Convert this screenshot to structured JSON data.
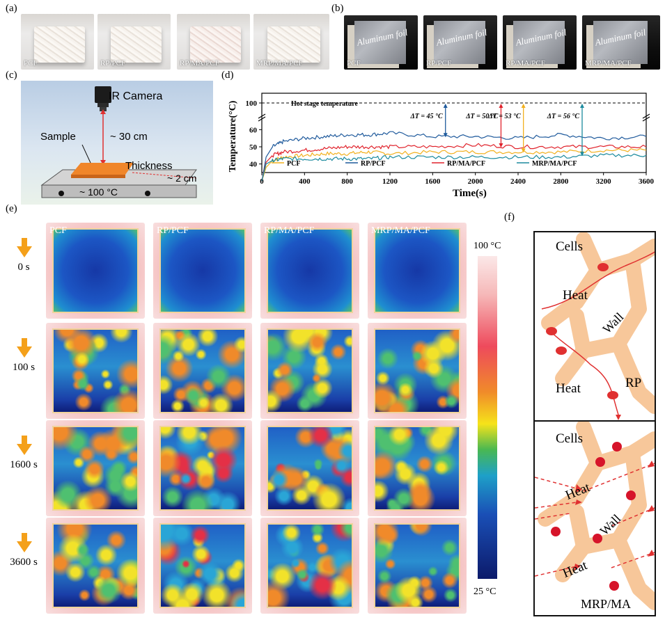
{
  "panels": {
    "a": "(a)",
    "b": "(b)",
    "c": "(c)",
    "d": "(d)",
    "e": "(e)",
    "f": "(f)"
  },
  "panel_a": {
    "captions": [
      "PCF",
      "RP/PCF",
      "RP/MA/PCF",
      "MRP/MA/PCF"
    ]
  },
  "panel_b": {
    "captions": [
      "PCF",
      "RP/PCF",
      "RP/MA/PCF",
      "MRP/MA/PCF"
    ],
    "foil_label": "Aluminum foil"
  },
  "panel_c": {
    "camera": "IR Camera",
    "sample": "Sample",
    "distance": "~ 30 cm",
    "thickness": "Thickness",
    "thickness_value": "~ 2 cm",
    "stage_temp": "~ 100 °C"
  },
  "chart_data": {
    "type": "line",
    "xlabel": "Time(s)",
    "ylabel": "Temperature(°C)",
    "xlim": [
      0,
      3600
    ],
    "xticks": [
      0,
      400,
      800,
      1200,
      1600,
      2000,
      2400,
      2800,
      3200,
      3600
    ],
    "yticks_lower": [
      40,
      50,
      60
    ],
    "ytick_upper": 100,
    "reference_line": {
      "label": "Hot stage temperature",
      "value": 100
    },
    "annotations": [
      {
        "text": "ΔT = 45 °C",
        "x": 1720,
        "series": "RP/PCF",
        "color": "#1f5a9c"
      },
      {
        "text": "ΔT = 50 °C",
        "x": 2240,
        "series": "RP/MA/PCF",
        "color": "#e0222b"
      },
      {
        "text": "ΔT = 53 °C",
        "x": 2450,
        "series": "PCF",
        "color": "#f2b01e"
      },
      {
        "text": "ΔT = 56 °C",
        "x": 3000,
        "series": "MRP/MA/PCF",
        "color": "#1b8a9e"
      }
    ],
    "series": [
      {
        "name": "PCF",
        "color": "#f2b01e",
        "x": [
          0,
          40,
          100,
          200,
          400,
          600,
          800,
          1000,
          1200,
          1600,
          2000,
          2400,
          2800,
          3200,
          3600
        ],
        "y": [
          30,
          38,
          42,
          44,
          45,
          46,
          46,
          47,
          46,
          47,
          47,
          47,
          47,
          48,
          48
        ]
      },
      {
        "name": "RP/PCF",
        "color": "#1f5a9c",
        "x": [
          0,
          40,
          100,
          200,
          400,
          600,
          800,
          1000,
          1200,
          1600,
          2000,
          2400,
          2800,
          3200,
          3600
        ],
        "y": [
          30,
          44,
          50,
          53,
          55,
          56,
          57,
          57,
          58,
          56,
          56,
          55,
          57,
          55,
          56
        ]
      },
      {
        "name": "RP/MA/PCF",
        "color": "#e0222b",
        "x": [
          0,
          40,
          100,
          200,
          400,
          600,
          800,
          1000,
          1200,
          1600,
          2000,
          2400,
          2800,
          3200,
          3600
        ],
        "y": [
          30,
          41,
          45,
          47,
          48,
          49,
          50,
          50,
          50,
          50,
          51,
          50,
          50,
          50,
          50
        ]
      },
      {
        "name": "MRP/MA/PCF",
        "color": "#1b8a9e",
        "x": [
          0,
          40,
          100,
          200,
          400,
          600,
          800,
          1000,
          1200,
          1600,
          2000,
          2400,
          2800,
          3200,
          3600
        ],
        "y": [
          30,
          40,
          42,
          43,
          43,
          43,
          43,
          43,
          44,
          44,
          44,
          44,
          44,
          45,
          45
        ]
      }
    ]
  },
  "panel_e": {
    "columns": [
      "PCF",
      "RP/PCF",
      "RP/MA/PCF",
      "MRP/MA/PCF"
    ],
    "times": [
      "0 s",
      "100 s",
      "1600 s",
      "3600 s"
    ],
    "scale_max": "100 °C",
    "scale_min": "25 °C"
  },
  "panel_f": {
    "top": {
      "cells": "Cells",
      "heat1": "Heat",
      "wall": "Wall",
      "heat2": "Heat",
      "rp": "RP"
    },
    "bottom": {
      "cells": "Cells",
      "heat1": "Heat",
      "wall": "Wall",
      "heat2": "Heat",
      "label": "MRP/MA"
    }
  }
}
